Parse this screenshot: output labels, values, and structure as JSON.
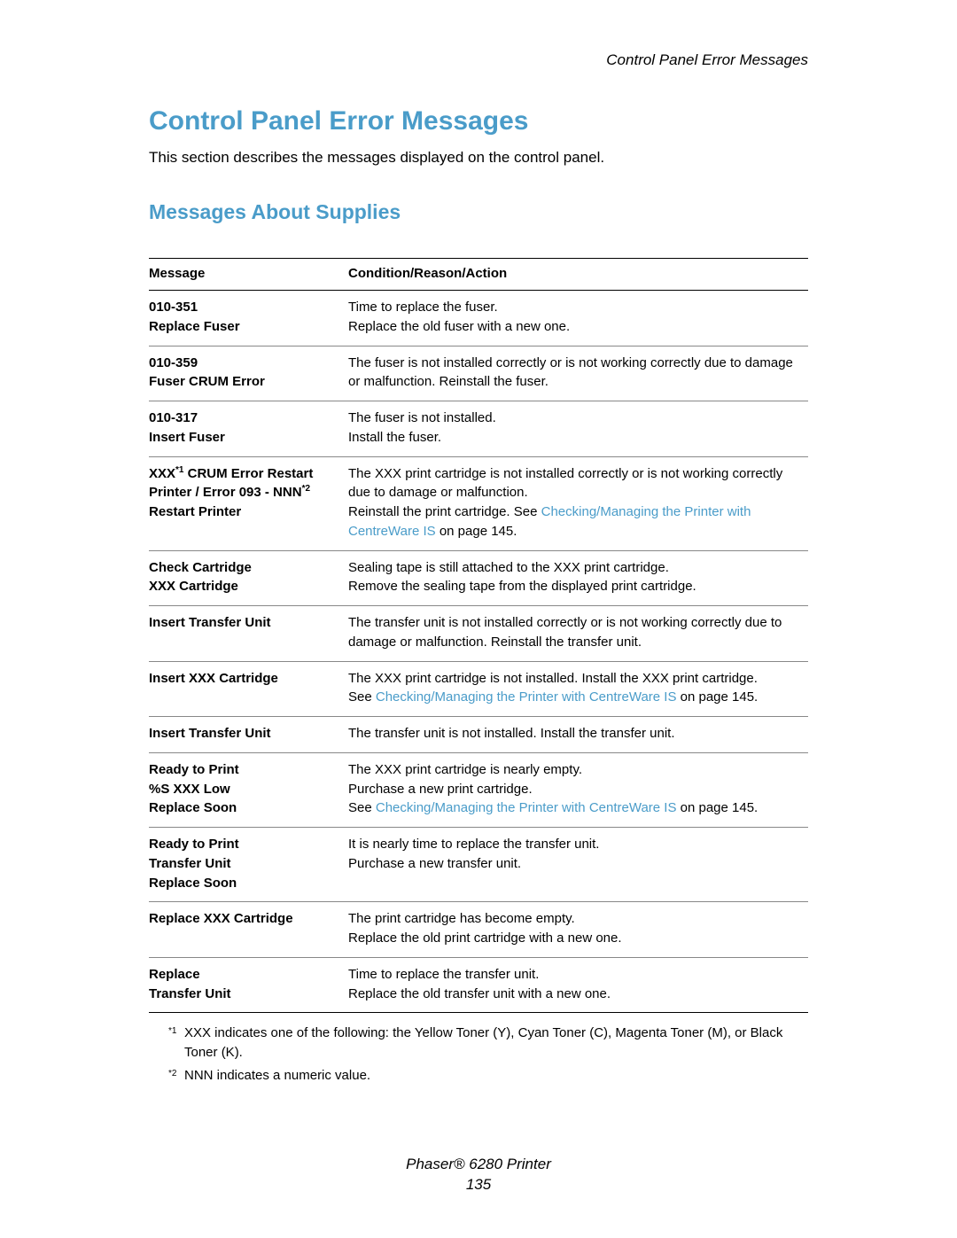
{
  "header": {
    "running_head": "Control Panel Error Messages"
  },
  "title": "Control Panel Error Messages",
  "intro": "This section describes the messages displayed on the control panel.",
  "subtitle": "Messages About Supplies",
  "columns": {
    "message": "Message",
    "action": "Condition/Reason/Action"
  },
  "rows": [
    {
      "message_html": "<span class=\"msg-line\">010-351</span><span class=\"msg-line\">Replace Fuser</span>",
      "action_html": "Time to replace the fuser.<br>Replace the old fuser with a new one."
    },
    {
      "message_html": "<span class=\"msg-line\">010-359</span><span class=\"msg-line\">Fuser CRUM Error</span>",
      "action_html": "The fuser is not installed correctly or is not working correctly due to damage or malfunction. Reinstall the fuser."
    },
    {
      "message_html": "<span class=\"msg-line\">010-317</span><span class=\"msg-line\">Insert Fuser</span>",
      "action_html": "The fuser is not installed.<br>Install the fuser."
    },
    {
      "message_html": "<span class=\"msg-line\">XXX<span class=\"sup\">*1</span> CRUM Error Restart</span><span class=\"msg-line\">Printer / Error 093 - NNN<span class=\"sup\">*2</span></span><span class=\"msg-line\">Restart Printer</span>",
      "action_html": "The XXX print cartridge is not installed correctly or is not working correctly due to damage or malfunction.<br>Reinstall the print cartridge. See <span class=\"link\">Checking/Managing the Printer with CentreWare IS</span> on page 145."
    },
    {
      "message_html": "<span class=\"msg-line\">Check Cartridge</span><span class=\"msg-line\">XXX Cartridge</span>",
      "action_html": "Sealing tape is still attached to the XXX print cartridge.<br>Remove the sealing tape from the displayed print cartridge."
    },
    {
      "message_html": "<span class=\"msg-line\">Insert Transfer Unit</span>",
      "action_html": "The transfer unit is not installed correctly or is not working correctly due to damage or malfunction. Reinstall the transfer unit."
    },
    {
      "message_html": "<span class=\"msg-line\">Insert XXX Cartridge</span>",
      "action_html": "The XXX print cartridge is not installed. Install the XXX print cartridge.<br>See <span class=\"link\">Checking/Managing the Printer with CentreWare IS</span> on page 145."
    },
    {
      "message_html": "<span class=\"msg-line\">Insert Transfer Unit</span>",
      "action_html": "The transfer unit is not installed. Install the transfer unit."
    },
    {
      "message_html": "<span class=\"msg-line\">Ready to Print</span><span class=\"msg-line\">%S XXX Low</span><span class=\"msg-line\">Replace Soon</span>",
      "action_html": "The XXX print cartridge is nearly empty.<br>Purchase a new print cartridge.<br>See <span class=\"link\">Checking/Managing the Printer with CentreWare IS</span> on page 145."
    },
    {
      "message_html": "<span class=\"msg-line\">Ready to Print</span><span class=\"msg-line\">Transfer Unit</span><span class=\"msg-line\">Replace Soon</span>",
      "action_html": "It is nearly time to replace the transfer unit.<br>Purchase a new transfer unit."
    },
    {
      "message_html": "<span class=\"msg-line\">Replace XXX Cartridge</span>",
      "action_html": "The print cartridge has become empty.<br>Replace the old print cartridge with a new one."
    },
    {
      "message_html": "<span class=\"msg-line\">Replace</span><span class=\"msg-line\">Transfer Unit</span>",
      "action_html": "Time to replace the transfer unit.<br>Replace the old transfer unit with a new one."
    }
  ],
  "footnotes": [
    {
      "marker": "*1",
      "text": "XXX indicates one of the following: the Yellow Toner (Y), Cyan Toner (C), Magenta Toner (M), or Black Toner (K)."
    },
    {
      "marker": "*2",
      "text": "NNN indicates a numeric value."
    }
  ],
  "footer": {
    "product": "Phaser® 6280 Printer",
    "page": "135"
  }
}
